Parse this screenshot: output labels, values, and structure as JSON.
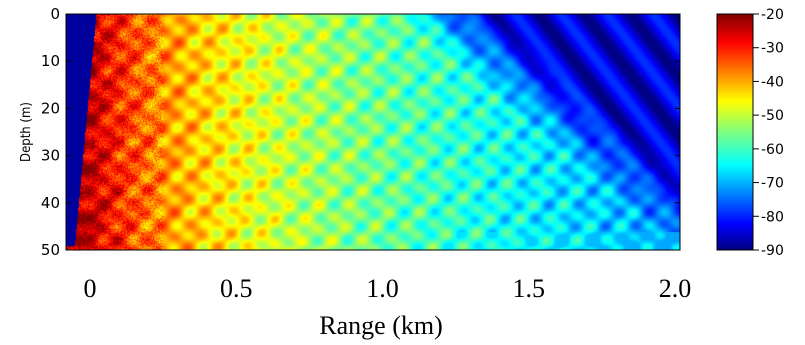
{
  "chart_data": {
    "type": "heatmap",
    "title": "",
    "xlabel": "Range (km)",
    "ylabel": "Depth (m)",
    "xlim": [
      0,
      2.0
    ],
    "ylim": [
      0,
      50
    ],
    "y_reversed": true,
    "x_ticks": [
      "0",
      "0.5",
      "1.0",
      "1.5",
      "2.0"
    ],
    "x_tick_values": [
      0,
      0.5,
      1.0,
      1.5,
      2.0
    ],
    "y_ticks": [
      "0",
      "10",
      "20",
      "30",
      "40",
      "50"
    ],
    "y_tick_values": [
      0,
      10,
      20,
      30,
      40,
      50
    ],
    "colorbar": {
      "ticks": [
        "-20",
        "-30",
        "-40",
        "-50",
        "-60",
        "-70",
        "-80",
        "-90"
      ],
      "tick_values": [
        -20,
        -30,
        -40,
        -50,
        -60,
        -70,
        -80,
        -90
      ],
      "range": [
        -90,
        -20
      ],
      "colormap": "jet"
    },
    "grid": false
  }
}
